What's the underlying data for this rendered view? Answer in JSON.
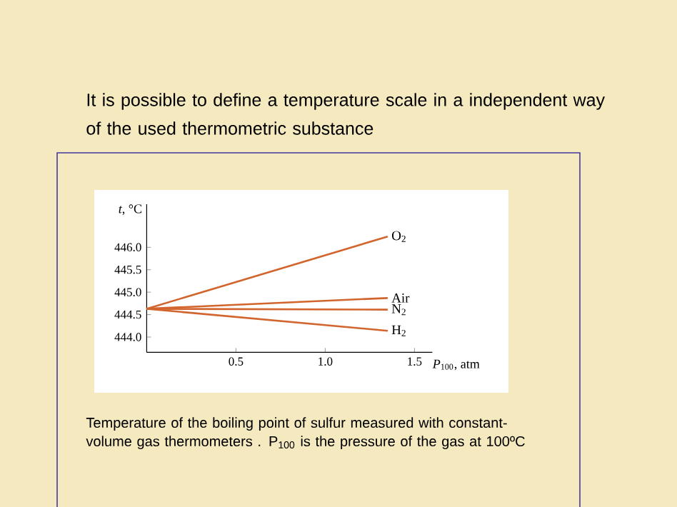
{
  "chart_data": {
    "type": "line",
    "title": "It is possible to define a temperature scale in a independent way of the used thermometric substance",
    "xlabel": "*P*$_{100}$, atm",
    "ylabel": "*t*, °C",
    "annotations": [
      "Temperature of the boiling point of sulfur measured with constant-volume gas thermometers . P$_{100}$ is the pressure of the gas at 100ºC"
    ],
    "x": [
      0,
      1.35
    ],
    "series": [
      {
        "name": "O$_{2}$",
        "color": "#d2652d",
        "values": [
          444.63,
          446.24
        ]
      },
      {
        "name": "Air",
        "color": "#d2652d",
        "values": [
          444.63,
          444.87
        ]
      },
      {
        "name": "N$_{2}$",
        "color": "#d2652d",
        "values": [
          444.63,
          444.61
        ]
      },
      {
        "name": "H$_{2}$",
        "color": "#d2652d",
        "values": [
          444.63,
          444.14
        ]
      }
    ],
    "xlim": [
      0,
      1.6
    ],
    "ylim": [
      443.66,
      446.96
    ],
    "xticks": [
      {
        "value": 0.5,
        "label": "0.5"
      },
      {
        "value": 1,
        "label": "1.0"
      },
      {
        "value": 1.5,
        "label": "1.5"
      }
    ],
    "yticks": [
      {
        "value": 444,
        "label": "444.0"
      },
      {
        "value": 444.5,
        "label": "444.5"
      },
      {
        "value": 445,
        "label": "445.0"
      },
      {
        "value": 445.5,
        "label": "445.5"
      },
      {
        "value": 446,
        "label": "446.0"
      }
    ],
    "marker": "none"
  }
}
